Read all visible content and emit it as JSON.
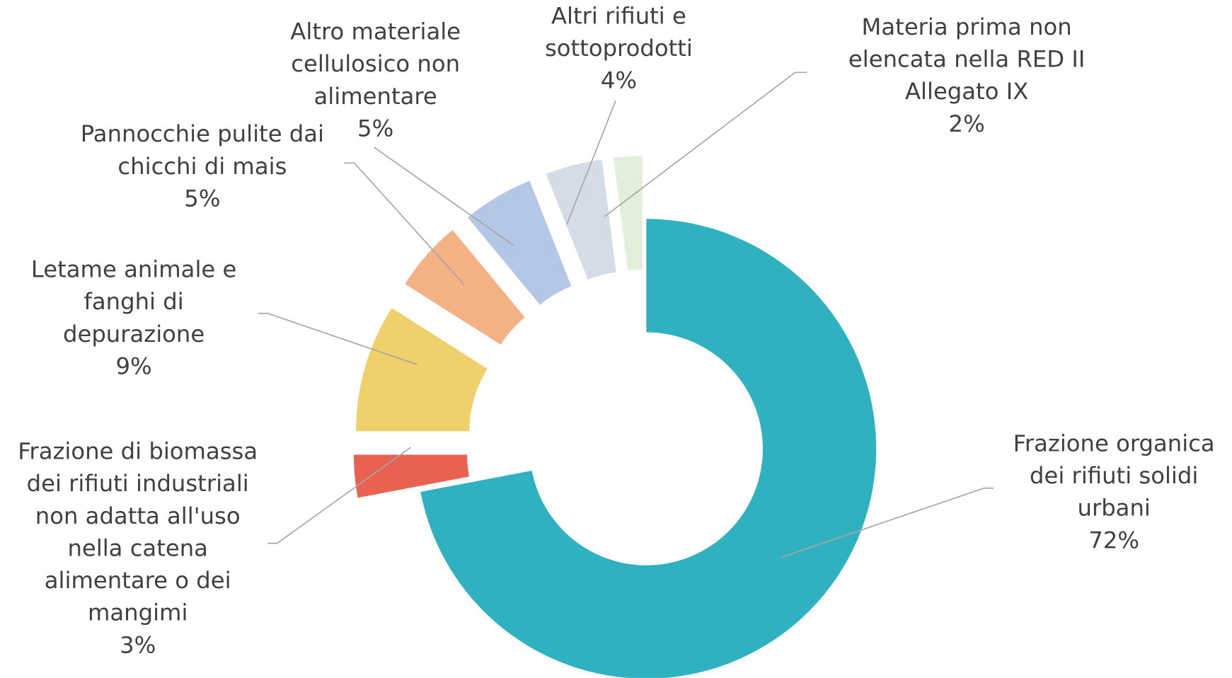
{
  "chart_data": {
    "type": "donut",
    "categories": [
      "Frazione organica dei rifiuti solidi urbani",
      "Frazione di biomassa dei rifiuti industriali non adatta all'uso nella catena alimentare o dei mangimi",
      "Letame animale e fanghi di depurazione",
      "Pannocchie pulite dai chicchi di mais",
      "Altro materiale cellulosico non alimentare",
      "Altri rifiuti e sottoprodotti",
      "Materia prima non elencata nella RED II Allegato IX"
    ],
    "values": [
      72,
      3,
      9,
      5,
      5,
      4,
      2
    ],
    "value_labels": [
      "72%",
      "3%",
      "9%",
      "5%",
      "5%",
      "4%",
      "2%"
    ],
    "colors": [
      "#2fb1bf",
      "#e96251",
      "#efd06b",
      "#f4b183",
      "#b4c7e7",
      "#d6dce5",
      "#e2efda"
    ]
  }
}
